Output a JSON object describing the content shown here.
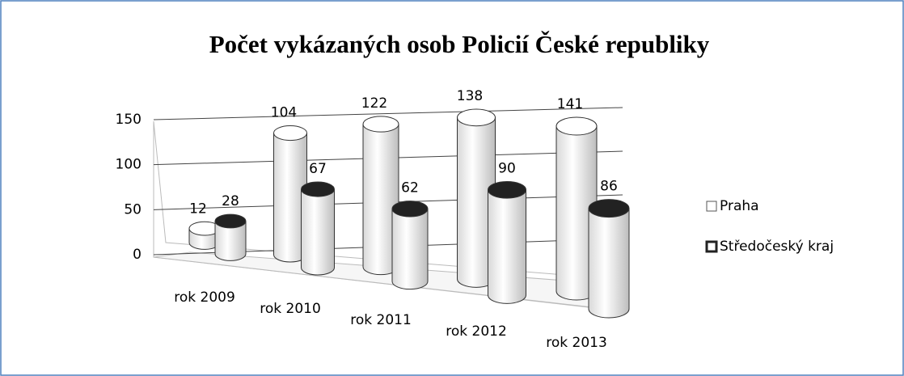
{
  "chart_data": {
    "type": "bar",
    "title": "Počet vykázaných  osob Policií České republiky",
    "categories": [
      "rok 2009",
      "rok 2010",
      "rok 2011",
      "rok 2012",
      "rok 2013"
    ],
    "series": [
      {
        "name": "Praha",
        "color": "#ffffff",
        "values": [
          12,
          104,
          122,
          138,
          141
        ]
      },
      {
        "name": "Středočeský kraj",
        "color": "#222222",
        "values": [
          28,
          67,
          62,
          90,
          86
        ]
      }
    ],
    "ylim": [
      0,
      150
    ],
    "yticks": [
      0,
      50,
      100,
      150
    ],
    "grid": true,
    "legend": "right"
  }
}
